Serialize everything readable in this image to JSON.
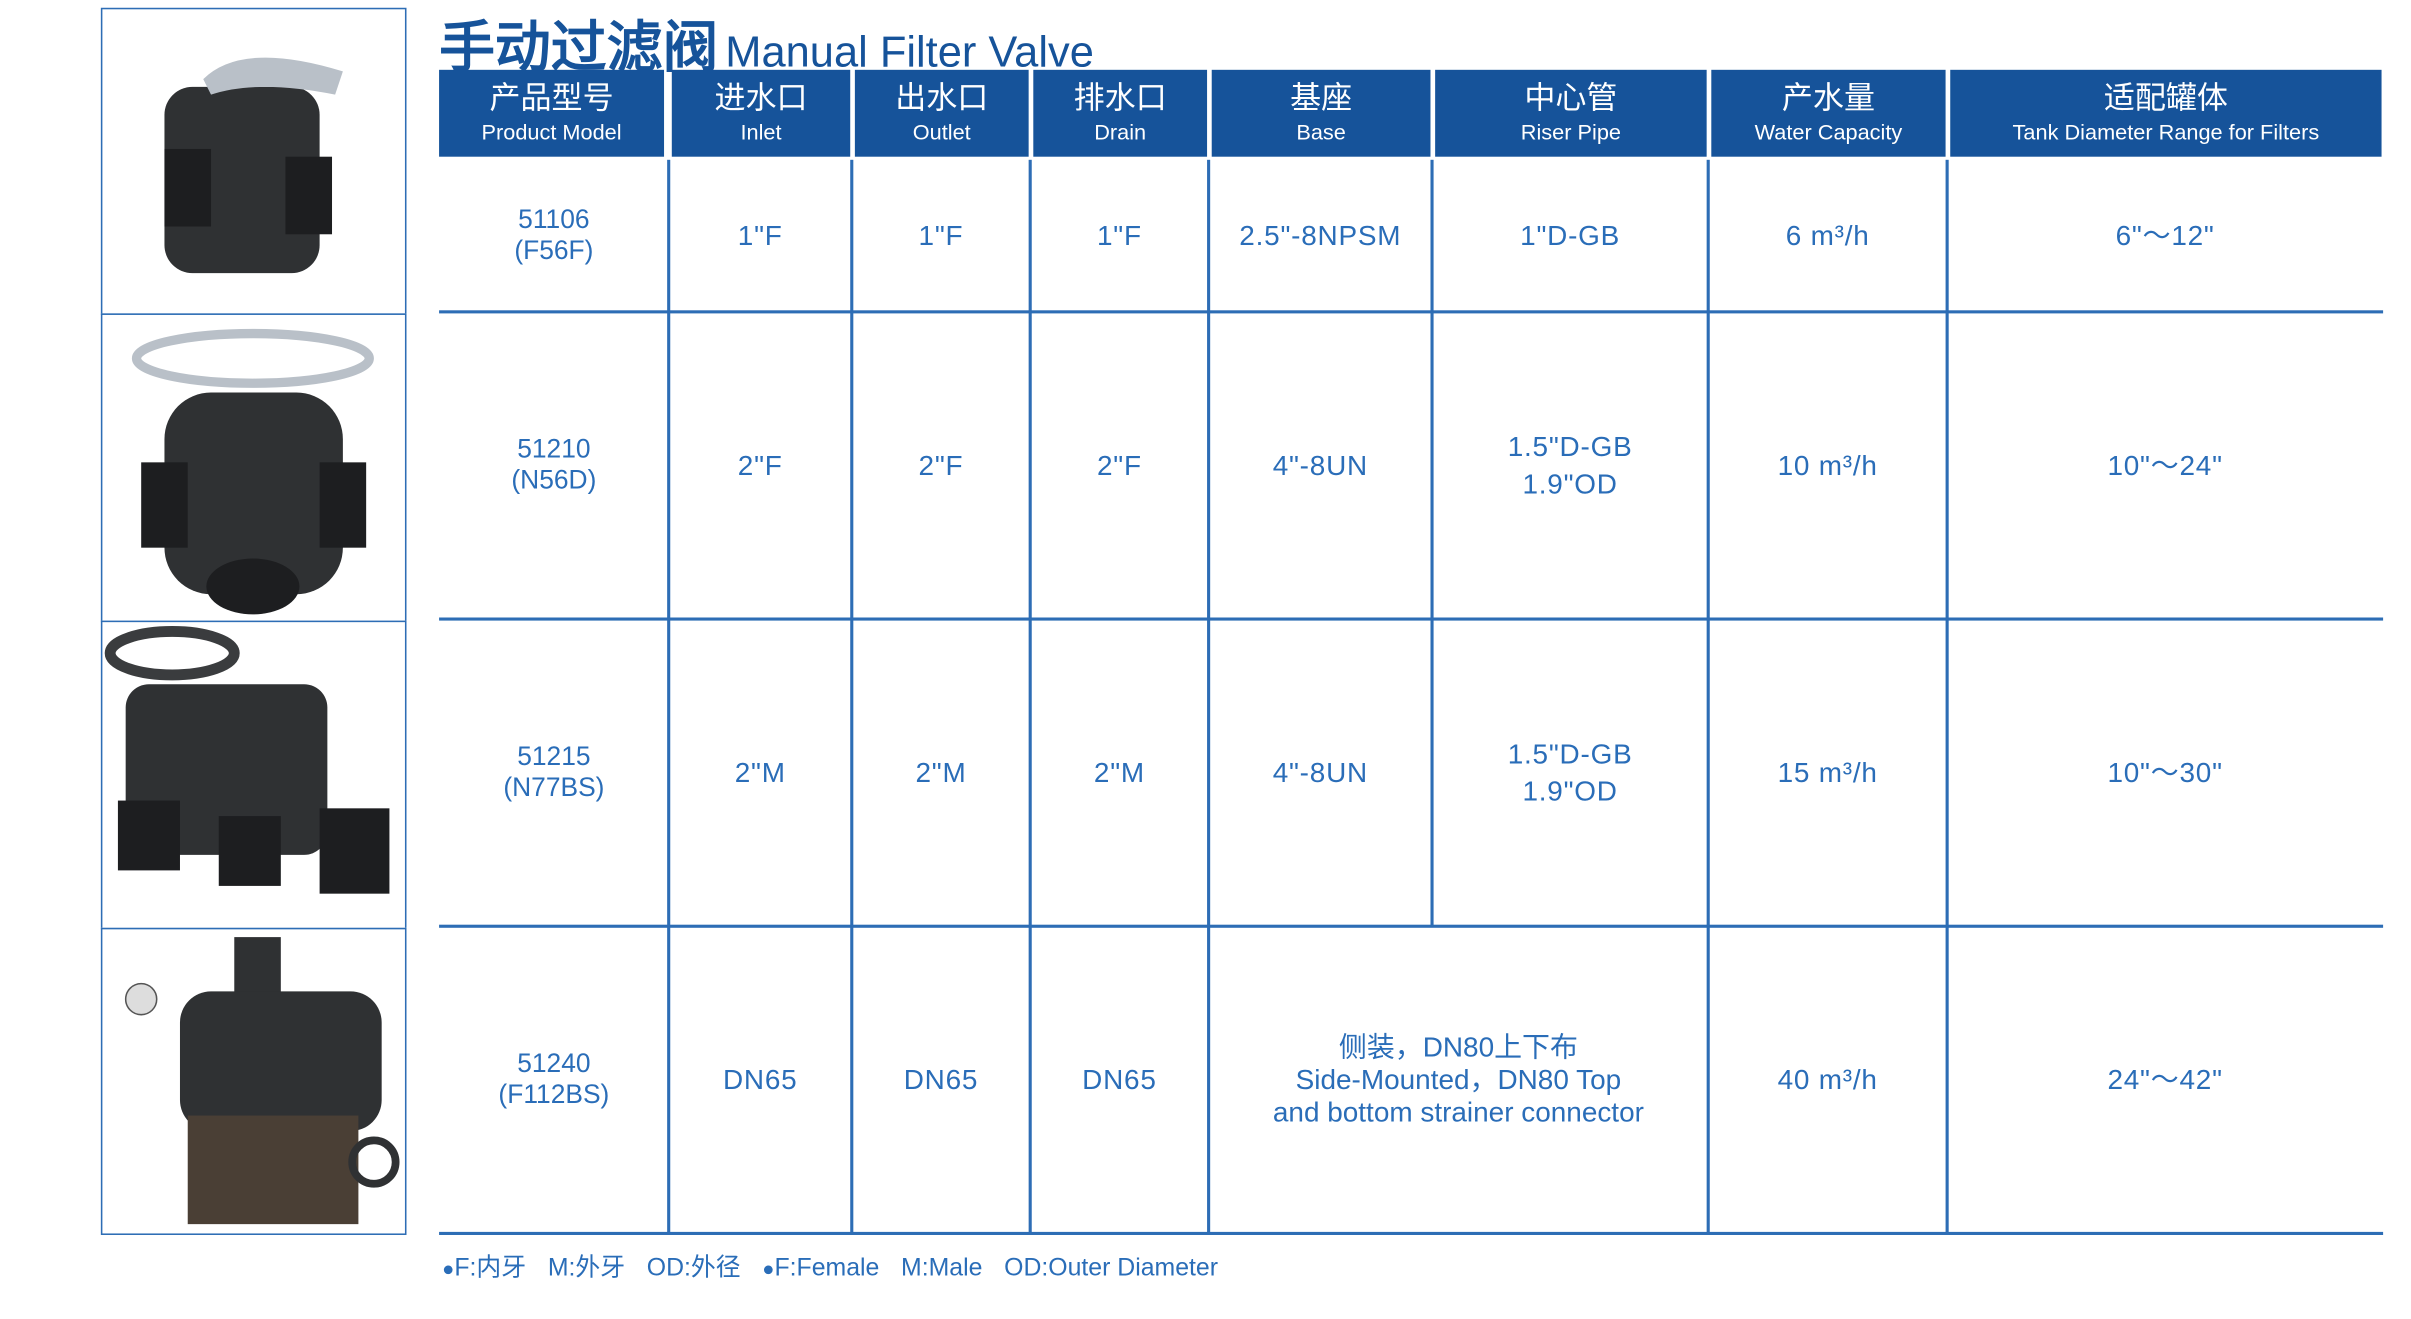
{
  "title": {
    "zh": "手动过滤阀",
    "en": "Manual Filter Valve"
  },
  "table": {
    "header": [
      {
        "zh": "产品型号",
        "en": "Product Model"
      },
      {
        "zh": "进水口",
        "en": "Inlet"
      },
      {
        "zh": "出水口",
        "en": "Outlet"
      },
      {
        "zh": "排水口",
        "en": "Drain"
      },
      {
        "zh": "基座",
        "en": "Base"
      },
      {
        "zh": "中心管",
        "en": "Riser Pipe"
      },
      {
        "zh": "产水量",
        "en": "Water Capacity"
      },
      {
        "zh": "适配罐体",
        "en": "Tank Diameter Range for Filters"
      }
    ],
    "rows": [
      {
        "model": [
          "51106",
          "(F56F)"
        ],
        "cells": [
          [
            "1\"F"
          ],
          [
            "1\"F"
          ],
          [
            "1\"F"
          ],
          [
            "2.5\"-8NPSM"
          ],
          [
            "1\"D-GB"
          ],
          [
            "6 m³/h"
          ],
          [
            "6\"～12\""
          ]
        ]
      },
      {
        "model": [
          "51210",
          "(N56D)"
        ],
        "cells": [
          [
            "2\"F"
          ],
          [
            "2\"F"
          ],
          [
            "2\"F"
          ],
          [
            "4\"-8UN"
          ],
          [
            "1.5\"D-GB",
            "1.9\"OD"
          ],
          [
            "10 m³/h"
          ],
          [
            "10\"～24\""
          ]
        ]
      },
      {
        "model": [
          "51215",
          "(N77BS)"
        ],
        "cells": [
          [
            "2\"M"
          ],
          [
            "2\"M"
          ],
          [
            "2\"M"
          ],
          [
            "4\"-8UN"
          ],
          [
            "1.5\"D-GB",
            "1.9\"OD"
          ],
          [
            "15 m³/h"
          ],
          [
            "10\"～30\""
          ]
        ]
      },
      {
        "model": [
          "51240",
          "(F112BS)"
        ],
        "cells": [
          [
            "DN65"
          ],
          [
            "DN65"
          ],
          [
            "DN65"
          ],
          [
            "侧装，DN80上下布",
            "Side-Mounted，DN80 Top",
            "and bottom strainer connector"
          ],
          [
            "40 m³/h"
          ],
          [
            "24\"～42\""
          ]
        ]
      }
    ]
  },
  "footnote": [
    [
      "F:内牙",
      "M:外牙",
      "OD:外径"
    ],
    [
      "F:Female",
      "M:Male",
      "OD:Outer Diameter"
    ]
  ]
}
